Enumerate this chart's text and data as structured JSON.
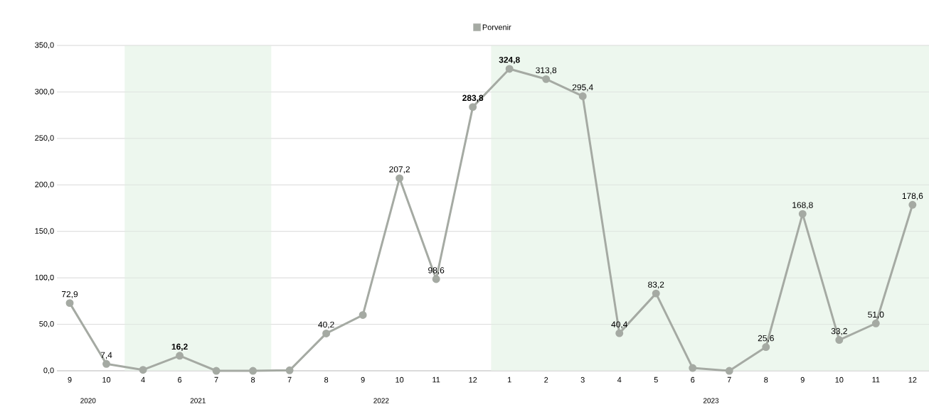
{
  "chart_data": {
    "type": "line",
    "categories": [
      "9",
      "10",
      "4",
      "6",
      "7",
      "8",
      "7",
      "8",
      "9",
      "10",
      "11",
      "12",
      "1",
      "2",
      "3",
      "4",
      "5",
      "6",
      "7",
      "8",
      "9",
      "10",
      "11",
      "12"
    ],
    "series": [
      {
        "name": "Porvenir",
        "color": "#a5aaa3",
        "values": [
          72.9,
          7.4,
          1,
          16.2,
          0,
          0,
          0.5,
          40.2,
          60,
          207.2,
          98.6,
          283.8,
          324.8,
          313.8,
          295.4,
          40.4,
          83.2,
          3,
          0,
          25.6,
          168.8,
          33.2,
          51.0,
          178.6
        ],
        "value_labels": [
          "72,9",
          "7,4",
          null,
          "**16,2**",
          null,
          null,
          null,
          "40,2",
          null,
          "207,2",
          "98,6",
          "**283,8**",
          "**324,8**",
          "313,8",
          "295,4",
          "40,4",
          "83,2",
          null,
          null,
          "25,6",
          "168,8",
          "33,2",
          "51,0",
          "178,6"
        ]
      }
    ],
    "ylim": [
      0,
      350
    ],
    "yticks": [
      {
        "value": 0,
        "label": "0,0"
      },
      {
        "value": 50,
        "label": "50,0"
      },
      {
        "value": 100,
        "label": "100,0"
      },
      {
        "value": 150,
        "label": "150,0"
      },
      {
        "value": 200,
        "label": "200,0"
      },
      {
        "value": 250,
        "label": "250,0"
      },
      {
        "value": 300,
        "label": "300,0"
      },
      {
        "value": 350,
        "label": "350,0"
      }
    ],
    "annotations": [
      "2020",
      "2021",
      "2022",
      "2023"
    ],
    "grid": "y",
    "legend": "top",
    "marker": "circle",
    "line_style": "solid"
  }
}
